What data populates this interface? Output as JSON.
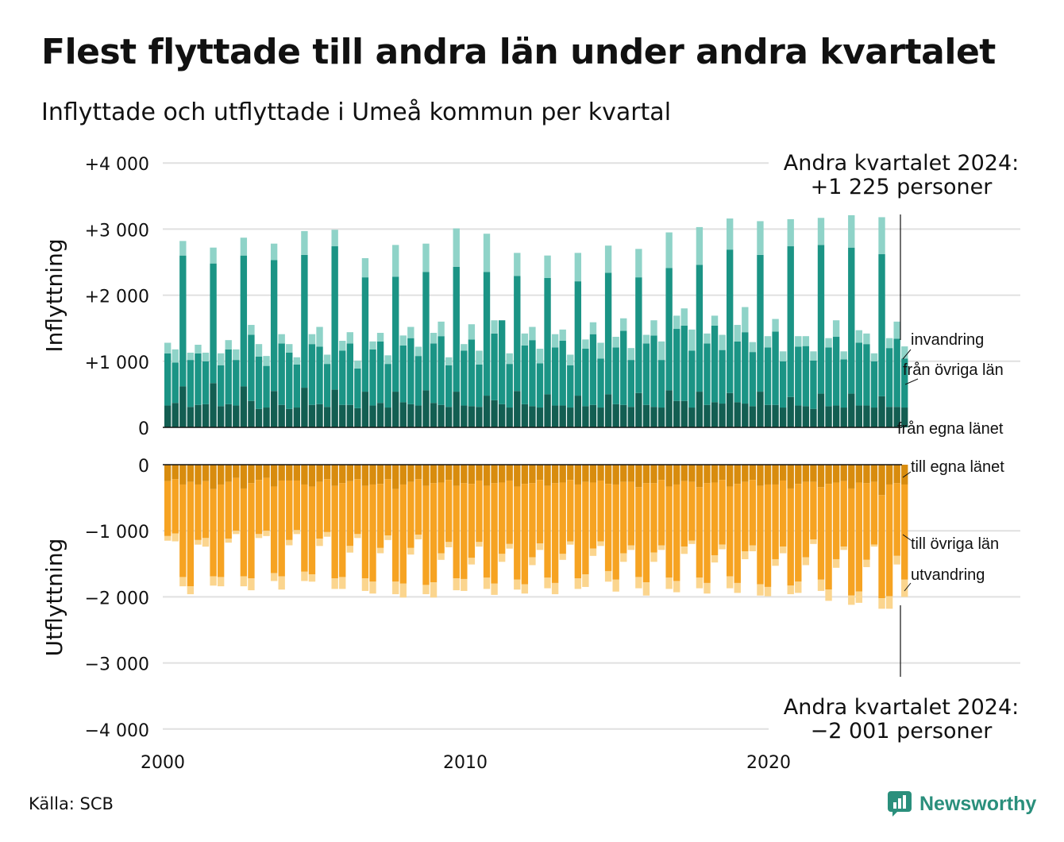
{
  "title": "Flest flyttade till andra län under andra kvartalet",
  "subtitle": "Inflyttade och utflyttade i Umeå kommun per kvartal",
  "source": "Källa: SCB",
  "brand": "Newsworthy",
  "colors": {
    "in_egna": "#135e52",
    "in_ovriga": "#1b9485",
    "in_invandring": "#8fd3c8",
    "out_egna": "#d88c0e",
    "out_ovriga": "#f6a322",
    "out_utvandring": "#fbd58e",
    "grid": "#e0e0e0",
    "brand": "#2a8f7c"
  },
  "chart_data": {
    "type": "bar",
    "stacked": true,
    "diverging": true,
    "x_ticks": [
      "2000",
      "2010",
      "2020"
    ],
    "y_ticks_top": [
      "+4 000",
      "+3 000",
      "+2 000",
      "+1 000",
      "0"
    ],
    "y_ticks_bottom": [
      "0",
      "−1 000",
      "−2 000",
      "−3 000",
      "−4 000"
    ],
    "ylabel_top": "Inflyttning",
    "ylabel_bottom": "Utflyttning",
    "ylim_top": [
      0,
      4000
    ],
    "ylim_bottom": [
      -4000,
      0
    ],
    "first_quarter": "2000 K1",
    "last_quarter": "2024 K2",
    "series_in_labels": [
      "invandring",
      "från övriga län",
      "från egna länet"
    ],
    "series_out_labels": [
      "till egna länet",
      "till övriga län",
      "utvandring"
    ],
    "annotation_top": [
      "Andra kvartalet 2024:",
      "+1 225 personer"
    ],
    "annotation_bottom": [
      "Andra kvartalet 2024:",
      "−2 001 personer"
    ],
    "totals_in": [
      1280,
      1180,
      2820,
      1130,
      1250,
      1130,
      2720,
      1120,
      1320,
      1180,
      2870,
      1550,
      1260,
      1080,
      2780,
      1410,
      1260,
      1060,
      2970,
      1410,
      1520,
      1100,
      2990,
      1310,
      1440,
      1010,
      2560,
      1300,
      1430,
      1090,
      2760,
      1390,
      1520,
      1220,
      2780,
      1430,
      1600,
      1060,
      3010,
      1260,
      1560,
      1160,
      2930,
      1620,
      1600,
      1120,
      2640,
      1420,
      1520,
      1190,
      2600,
      1410,
      1480,
      1100,
      2640,
      1330,
      1590,
      1280,
      2750,
      1370,
      1650,
      1200,
      2700,
      1400,
      1620,
      1300,
      2950,
      1690,
      1800,
      1480,
      3030,
      1420,
      1690,
      1400,
      3160,
      1550,
      1820,
      1290,
      3120,
      1380,
      1640,
      1150,
      3150,
      1380,
      1380,
      1150,
      3170,
      1350,
      1620,
      1150,
      3210,
      1470,
      1420,
      1120,
      3180,
      1350,
      1600,
      1225
    ],
    "egna_in": [
      330,
      370,
      620,
      310,
      340,
      350,
      670,
      320,
      350,
      330,
      620,
      400,
      280,
      300,
      550,
      340,
      280,
      300,
      600,
      340,
      350,
      310,
      570,
      340,
      340,
      290,
      540,
      330,
      370,
      300,
      540,
      380,
      350,
      330,
      560,
      370,
      340,
      310,
      540,
      330,
      320,
      310,
      480,
      410,
      350,
      300,
      550,
      350,
      320,
      300,
      500,
      330,
      330,
      300,
      480,
      320,
      340,
      300,
      500,
      350,
      340,
      310,
      520,
      340,
      310,
      300,
      560,
      400,
      400,
      300,
      540,
      340,
      380,
      360,
      520,
      380,
      360,
      320,
      540,
      340,
      340,
      300,
      460,
      330,
      320,
      280,
      510,
      320,
      330,
      300,
      510,
      330,
      330,
      300,
      470,
      310,
      310,
      300
    ],
    "ovriga_in": [
      790,
      610,
      1980,
      710,
      780,
      650,
      1810,
      620,
      830,
      690,
      1980,
      1000,
      790,
      630,
      1980,
      930,
      850,
      650,
      2010,
      920,
      870,
      650,
      2170,
      820,
      930,
      600,
      1730,
      850,
      930,
      660,
      1740,
      860,
      1000,
      750,
      1790,
      900,
      1040,
      630,
      1890,
      830,
      1010,
      640,
      1870,
      1010,
      1270,
      660,
      1740,
      890,
      1000,
      670,
      1760,
      880,
      980,
      640,
      1730,
      870,
      1070,
      740,
      1840,
      860,
      1120,
      710,
      1750,
      930,
      1080,
      720,
      1850,
      1090,
      1140,
      860,
      1920,
      930,
      1160,
      810,
      2170,
      920,
      1080,
      820,
      2070,
      870,
      1110,
      700,
      2280,
      890,
      910,
      730,
      2250,
      890,
      1040,
      730,
      2210,
      950,
      930,
      700,
      2150,
      890,
      1030,
      740
    ],
    "totals_out": [
      1150,
      1160,
      1840,
      1960,
      1210,
      1240,
      1830,
      1840,
      1180,
      1050,
      1840,
      1900,
      1110,
      1080,
      1760,
      1890,
      1220,
      1050,
      1760,
      1770,
      1230,
      1090,
      1880,
      1880,
      1330,
      1110,
      1910,
      1950,
      1340,
      1140,
      1960,
      2010,
      1360,
      1130,
      1960,
      2010,
      1440,
      1250,
      1900,
      1910,
      1510,
      1240,
      1880,
      1970,
      1470,
      1270,
      1890,
      1950,
      1520,
      1290,
      1870,
      1960,
      1440,
      1210,
      1880,
      1850,
      1380,
      1230,
      1770,
      1920,
      1470,
      1290,
      1870,
      1980,
      1470,
      1290,
      1880,
      1930,
      1350,
      1200,
      1870,
      1950,
      1480,
      1280,
      1870,
      1940,
      1430,
      1310,
      1980,
      1990,
      1530,
      1340,
      1960,
      1940,
      1520,
      1200,
      1910,
      2060,
      1560,
      1290,
      2120,
      2090,
      1550,
      1240,
      2180,
      2180,
      1510,
      2001
    ],
    "egna_out": [
      250,
      220,
      300,
      260,
      300,
      250,
      370,
      300,
      260,
      200,
      360,
      280,
      230,
      200,
      330,
      240,
      240,
      240,
      300,
      330,
      260,
      220,
      320,
      280,
      250,
      220,
      320,
      300,
      290,
      220,
      370,
      300,
      260,
      220,
      320,
      280,
      270,
      230,
      320,
      280,
      290,
      240,
      320,
      280,
      270,
      240,
      330,
      290,
      280,
      230,
      320,
      280,
      270,
      230,
      300,
      260,
      270,
      240,
      290,
      300,
      260,
      260,
      340,
      280,
      280,
      230,
      330,
      300,
      250,
      260,
      340,
      280,
      270,
      230,
      330,
      290,
      260,
      230,
      320,
      300,
      300,
      240,
      360,
      290,
      260,
      260,
      340,
      290,
      270,
      250,
      360,
      270,
      280,
      260,
      460,
      300,
      280,
      300
    ],
    "ovriga_out": [
      830,
      820,
      1400,
      1580,
      840,
      860,
      1320,
      1400,
      860,
      800,
      1330,
      1440,
      820,
      800,
      1310,
      1450,
      900,
      750,
      1320,
      1330,
      860,
      800,
      1400,
      1420,
      980,
      830,
      1400,
      1470,
      970,
      850,
      1400,
      1500,
      1000,
      840,
      1500,
      1500,
      1070,
      940,
      1400,
      1450,
      1120,
      930,
      1390,
      1520,
      1080,
      960,
      1410,
      1520,
      1120,
      960,
      1390,
      1510,
      1080,
      930,
      1420,
      1400,
      1000,
      920,
      1320,
      1440,
      1080,
      960,
      1360,
      1500,
      1050,
      990,
      1380,
      1460,
      990,
      890,
      1370,
      1510,
      1100,
      980,
      1360,
      1500,
      1050,
      990,
      1490,
      1550,
      1130,
      1000,
      1470,
      1480,
      1140,
      870,
      1400,
      1600,
      1160,
      990,
      1620,
      1650,
      1160,
      950,
      1560,
      1690,
      1100,
      1440
    ]
  }
}
